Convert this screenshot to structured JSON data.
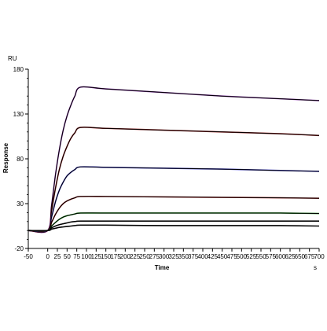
{
  "chart_data": {
    "type": "line",
    "title": "",
    "xlabel": "Time",
    "ylabel": "Response",
    "y_unit": "RU",
    "x_unit": "s",
    "xlim": [
      -50,
      700
    ],
    "ylim": [
      -20,
      180
    ],
    "x_ticks": [
      -50,
      0,
      25,
      50,
      75,
      100,
      125,
      150,
      175,
      200,
      225,
      250,
      275,
      300,
      325,
      350,
      375,
      400,
      425,
      450,
      475,
      500,
      525,
      550,
      575,
      600,
      625,
      650,
      675,
      700
    ],
    "y_ticks": [
      -20,
      30,
      80,
      130,
      180
    ],
    "grid": false,
    "legend": "none",
    "series": [
      {
        "color": "#000000",
        "fit_color": "#7a1fa0",
        "x": [
          -50,
          0,
          10,
          20,
          30,
          40,
          50,
          60,
          70,
          85,
          150,
          300,
          450,
          600,
          700
        ],
        "y": [
          0,
          0,
          28,
          62,
          90,
          112,
          128,
          140,
          150,
          160,
          158,
          154,
          150,
          147,
          145
        ]
      },
      {
        "color": "#000000",
        "fit_color": "#8b0000",
        "x": [
          -50,
          0,
          10,
          20,
          30,
          40,
          50,
          60,
          70,
          85,
          150,
          300,
          450,
          600,
          700
        ],
        "y": [
          0,
          0,
          22,
          47,
          68,
          83,
          94,
          103,
          109,
          115,
          114,
          112,
          110,
          108,
          106
        ]
      },
      {
        "color": "#000000",
        "fit_color": "#2020c0",
        "x": [
          -50,
          0,
          10,
          20,
          30,
          40,
          50,
          60,
          70,
          85,
          150,
          300,
          450,
          600,
          700
        ],
        "y": [
          0,
          0,
          15,
          32,
          45,
          54,
          61,
          65,
          68,
          71,
          70.5,
          69.5,
          68.5,
          67,
          66
        ]
      },
      {
        "color": "#000000",
        "fit_color": "#8b0000",
        "x": [
          -50,
          0,
          10,
          20,
          30,
          40,
          50,
          60,
          70,
          85,
          150,
          300,
          450,
          600,
          700
        ],
        "y": [
          0,
          0,
          9,
          18,
          25,
          30,
          33,
          35,
          36.5,
          38,
          38,
          37.5,
          37,
          36.5,
          36
        ]
      },
      {
        "color": "#000000",
        "fit_color": "#008000",
        "x": [
          -50,
          0,
          10,
          20,
          30,
          40,
          50,
          60,
          70,
          85,
          150,
          300,
          450,
          600,
          700
        ],
        "y": [
          0,
          0,
          5,
          9,
          12.5,
          15,
          16.5,
          17.5,
          18.5,
          19.5,
          19.5,
          19.5,
          19.5,
          19.5,
          19
        ]
      },
      {
        "color": "#000000",
        "fit_color": "#000000",
        "x": [
          -50,
          0,
          10,
          20,
          30,
          40,
          50,
          60,
          70,
          85,
          150,
          300,
          450,
          600,
          700
        ],
        "y": [
          0,
          0,
          3,
          5,
          6.5,
          7.5,
          8.5,
          9.5,
          10,
          10.5,
          10.5,
          10.5,
          10.5,
          10.5,
          10.5
        ]
      },
      {
        "color": "#000000",
        "fit_color": "#000000",
        "x": [
          -50,
          0,
          10,
          20,
          30,
          40,
          50,
          60,
          70,
          85,
          150,
          300,
          450,
          600,
          700
        ],
        "y": [
          0,
          0,
          1.5,
          2.5,
          3.5,
          4,
          4.5,
          5,
          5.5,
          6,
          6,
          5.5,
          5.5,
          5.5,
          5
        ]
      }
    ]
  }
}
